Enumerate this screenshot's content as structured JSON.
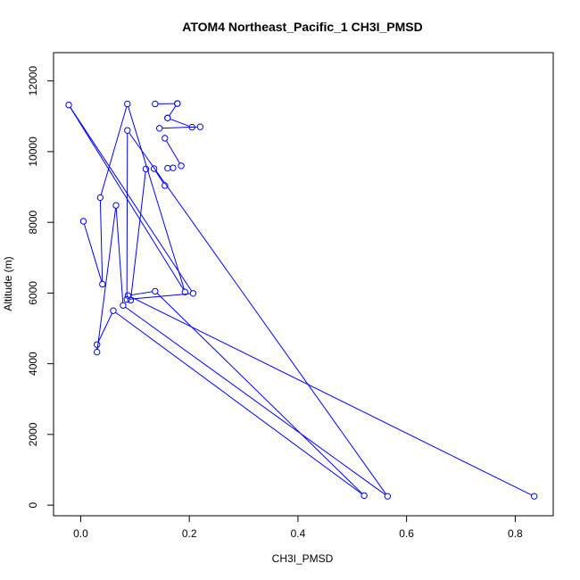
{
  "chart_data": {
    "type": "line",
    "title": "ATOM4 Northeast_Pacific_1 CH3I_PMSD",
    "xlabel": "CH3I_PMSD",
    "ylabel": "Altitude (m)",
    "xlim": [
      -0.05,
      0.87
    ],
    "ylim": [
      -300,
      12800
    ],
    "xticks": [
      0.0,
      0.2,
      0.4,
      0.6,
      0.8
    ],
    "xtick_labels": [
      "0.0",
      "0.2",
      "0.4",
      "0.6",
      "0.8"
    ],
    "yticks": [
      0,
      2000,
      4000,
      6000,
      8000,
      10000,
      12000
    ],
    "ytick_labels": [
      "0",
      "2000",
      "4000",
      "6000",
      "8000",
      "10000",
      "12000"
    ],
    "grid": false,
    "legend": "none",
    "series": [
      {
        "color": "#0000ff",
        "marker": "open-circle",
        "points": [
          {
            "x": 0.835,
            "y": 250
          },
          {
            "x": 0.087,
            "y": 5930
          },
          {
            "x": 0.137,
            "y": 6050
          },
          {
            "x": 0.522,
            "y": 270
          },
          {
            "x": 0.06,
            "y": 5500
          },
          {
            "x": 0.03,
            "y": 4540
          },
          {
            "x": 0.03,
            "y": 4330
          },
          {
            "x": 0.065,
            "y": 8480
          },
          {
            "x": 0.078,
            "y": 5650
          },
          {
            "x": 0.565,
            "y": 250
          },
          {
            "x": 0.086,
            "y": 10600
          },
          {
            "x": 0.085,
            "y": 5820
          },
          {
            "x": 0.207,
            "y": 5990
          },
          {
            "x": -0.022,
            "y": 11320
          },
          {
            "x": 0.192,
            "y": 6030
          },
          {
            "x": 0.086,
            "y": 11350
          },
          {
            "x": 0.036,
            "y": 8700
          },
          {
            "x": 0.04,
            "y": 6250
          },
          {
            "x": 0.005,
            "y": 8030
          }
        ]
      },
      {
        "color": "#0000ff",
        "marker": "open-circle",
        "points": [
          {
            "x": 0.137,
            "y": 11350
          },
          {
            "x": 0.178,
            "y": 11360
          }
        ]
      },
      {
        "color": "#0000ff",
        "marker": "open-circle",
        "points": [
          {
            "x": 0.16,
            "y": 10950
          },
          {
            "x": 0.178,
            "y": 11360
          }
        ]
      },
      {
        "color": "#0000ff",
        "marker": "open-circle",
        "points": [
          {
            "x": 0.16,
            "y": 10950
          },
          {
            "x": 0.205,
            "y": 10690
          }
        ]
      },
      {
        "color": "#0000ff",
        "marker": "open-circle",
        "points": [
          {
            "x": 0.145,
            "y": 10660
          },
          {
            "x": 0.22,
            "y": 10700
          }
        ]
      },
      {
        "color": "#0000ff",
        "marker": "open-circle",
        "points": [
          {
            "x": 0.155,
            "y": 10380
          },
          {
            "x": 0.185,
            "y": 9600
          }
        ]
      },
      {
        "color": "#0000ff",
        "marker": "open-circle",
        "points": [
          {
            "x": 0.135,
            "y": 9520
          },
          {
            "x": 0.155,
            "y": 9040
          }
        ]
      },
      {
        "color": "#0000ff",
        "marker": "open-circle",
        "points": [
          {
            "x": 0.12,
            "y": 9510
          },
          {
            "x": 0.092,
            "y": 5800
          }
        ]
      },
      {
        "color": "#0000ff",
        "marker": "open-circle",
        "points": [
          {
            "x": 0.16,
            "y": 9530
          },
          {
            "x": 0.17,
            "y": 9540
          }
        ]
      }
    ]
  }
}
